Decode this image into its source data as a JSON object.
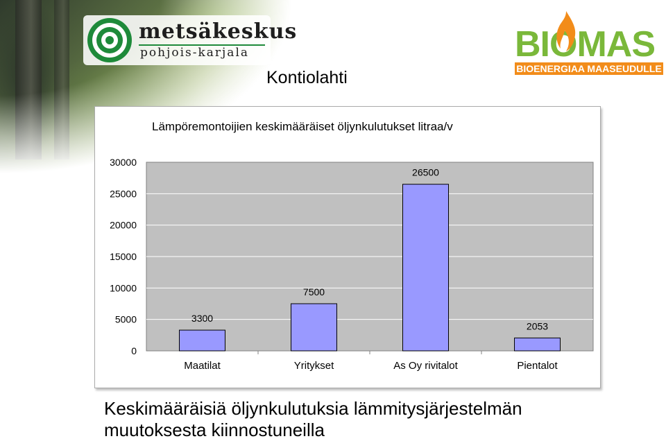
{
  "page": {
    "title": "Kontiolahti",
    "caption_line1": "Keskimääräisiä öljynkulutuksia lämmitysjärjestelmän",
    "caption_line2": "muutoksesta kiinnostuneilla"
  },
  "logos": {
    "left_name": "metsäkeskus",
    "left_sub": "pohjois-karjala",
    "right_name": "BIOMAS",
    "right_tagline": "BIOENERGIAA MAASEUDULLE",
    "left_color": "#1e8a3a",
    "right_green": "#7ab83a",
    "right_orange": "#f28c1a"
  },
  "chart_data": {
    "type": "bar",
    "title": "Lämpöremontoijien keskimääräiset öljynkulutukset litraa/v",
    "categories": [
      "Maatilat",
      "Yritykset",
      "As Oy rivitalot",
      "Pientalot"
    ],
    "values": [
      3300,
      7500,
      26500,
      2053
    ],
    "data_labels": [
      "3300",
      "7500",
      "26500",
      "2053"
    ],
    "ylim": [
      0,
      30000
    ],
    "yticks": [
      0,
      5000,
      10000,
      15000,
      20000,
      25000,
      30000
    ],
    "ytick_labels": [
      "0",
      "5000",
      "10000",
      "15000",
      "20000",
      "25000",
      "30000"
    ],
    "grid": true,
    "legend": "none",
    "bar_color": "#9999ff",
    "plot_background": "#c0c0c0"
  }
}
